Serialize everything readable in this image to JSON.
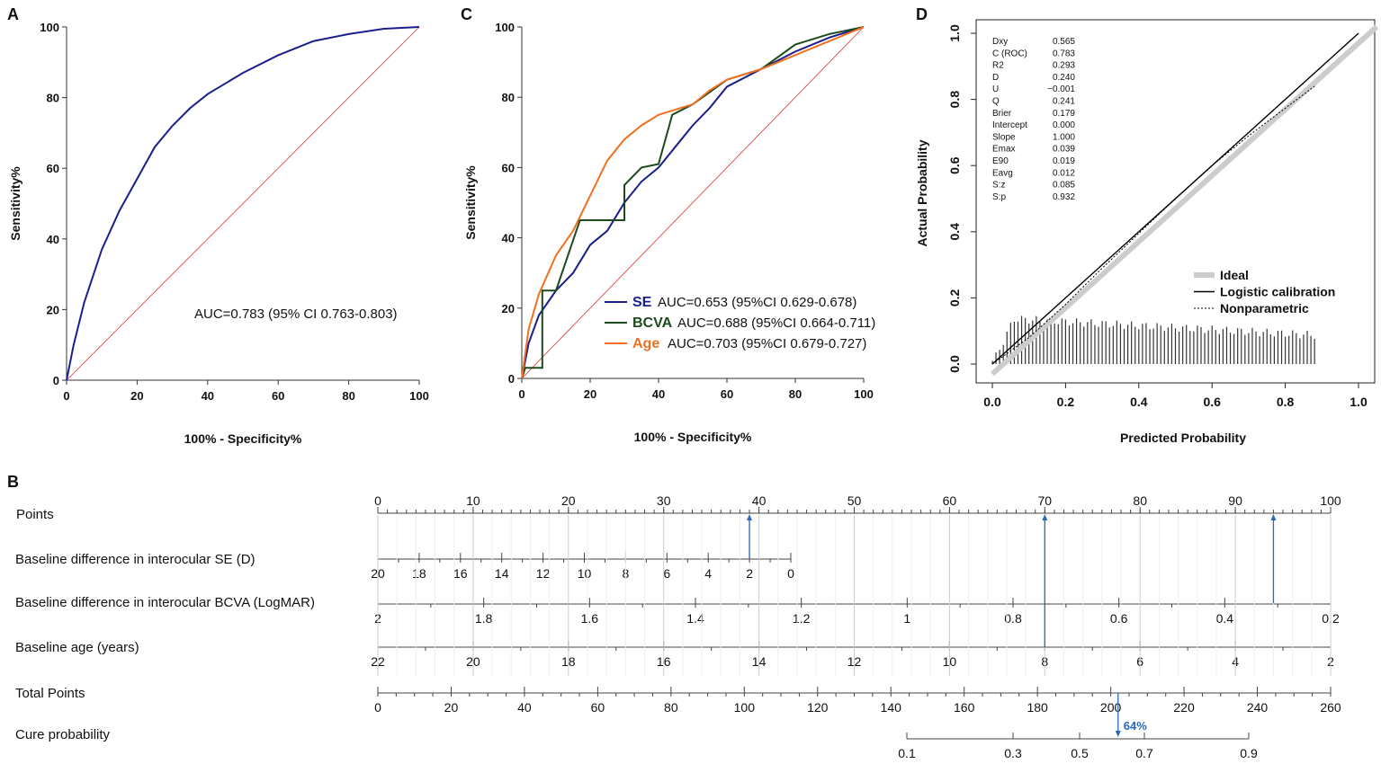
{
  "chart_data": [
    {
      "panel": "A",
      "type": "line",
      "xlabel": "100% - Specificity%",
      "ylabel": "Sensitivity%",
      "xlim": [
        0,
        100
      ],
      "ylim": [
        0,
        100
      ],
      "ticks": [
        0,
        20,
        40,
        60,
        80,
        100
      ],
      "annotation": "AUC=0.783 (95% CI 0.763-0.803)",
      "series": [
        {
          "color": "#1a1f8c",
          "x": [
            0,
            2,
            5,
            10,
            15,
            20,
            25,
            30,
            35,
            40,
            50,
            60,
            70,
            80,
            90,
            100
          ],
          "y": [
            0,
            10,
            22,
            37,
            48,
            57,
            66,
            72,
            77,
            81,
            87,
            92,
            96,
            98,
            99.5,
            100
          ]
        }
      ],
      "reference_color": "#e03030"
    },
    {
      "panel": "C",
      "type": "line",
      "xlabel": "100% - Specificity%",
      "ylabel": "Sensitivity%",
      "xlim": [
        0,
        100
      ],
      "ylim": [
        0,
        100
      ],
      "ticks": [
        0,
        20,
        40,
        60,
        80,
        100
      ],
      "legend": "bottom-right",
      "series": [
        {
          "name": "SE",
          "stat": "AUC=0.653 (95%CI 0.629-0.678)",
          "color": "#1a1f8c",
          "x": [
            0,
            2,
            5,
            10,
            15,
            20,
            25,
            30,
            35,
            40,
            45,
            50,
            55,
            60,
            70,
            80,
            90,
            100
          ],
          "y": [
            0,
            10,
            18,
            25,
            30,
            38,
            42,
            50,
            56,
            60,
            66,
            72,
            77,
            83,
            88,
            93,
            97,
            100
          ]
        },
        {
          "name": "BCVA",
          "stat": "AUC=0.688 (95%CI 0.664-0.711)",
          "color": "#1d4a1d",
          "x": [
            0,
            1,
            6,
            6,
            10,
            17,
            30,
            30,
            35,
            40,
            44,
            50,
            60,
            70,
            80,
            90,
            100
          ],
          "y": [
            0,
            3,
            3,
            25,
            25,
            45,
            45,
            55,
            60,
            61,
            75,
            78,
            85,
            88,
            95,
            98,
            100
          ]
        },
        {
          "name": "Age",
          "stat": "AUC=0.703 (95%CI 0.679-0.727)",
          "color": "#f07020",
          "x": [
            0,
            2,
            5,
            10,
            15,
            20,
            25,
            30,
            35,
            40,
            50,
            55,
            60,
            70,
            80,
            90,
            100
          ],
          "y": [
            0,
            14,
            24,
            35,
            42,
            52,
            62,
            68,
            72,
            75,
            78,
            82,
            85,
            88,
            92,
            96,
            100
          ]
        }
      ]
    },
    {
      "panel": "D",
      "type": "line",
      "xlabel": "Predicted Probability",
      "ylabel": "Actual Probability",
      "xlim": [
        0,
        1
      ],
      "ylim": [
        0,
        1
      ],
      "ticks": [
        "0.0",
        "0.2",
        "0.4",
        "0.6",
        "0.8",
        "1.0"
      ],
      "legend": "bottom-right",
      "legend_entries": [
        "Ideal",
        "Logistic calibration",
        "Nonparametric"
      ],
      "nonparametric": {
        "x": [
          0,
          0.1,
          0.2,
          0.3,
          0.5,
          0.6,
          0.7,
          0.88
        ],
        "y": [
          0,
          0.08,
          0.18,
          0.29,
          0.5,
          0.6,
          0.69,
          0.84
        ]
      },
      "stats": [
        [
          "Dxy",
          "0.565"
        ],
        [
          "C (ROC)",
          "0.783"
        ],
        [
          "R2",
          "0.293"
        ],
        [
          "D",
          "0.240"
        ],
        [
          "U",
          "−0.001"
        ],
        [
          "Q",
          "0.241"
        ],
        [
          "Brier",
          "0.179"
        ],
        [
          "Intercept",
          "0.000"
        ],
        [
          "Slope",
          "1.000"
        ],
        [
          "Emax",
          "0.039"
        ],
        [
          "E90",
          "0.019"
        ],
        [
          "Eavg",
          "0.012"
        ],
        [
          "S:z",
          "0.085"
        ],
        [
          "S:p",
          "0.932"
        ]
      ]
    },
    {
      "panel": "B",
      "type": "nomogram",
      "rows": [
        {
          "label": "Points",
          "ticks": [
            "0",
            "10",
            "20",
            "30",
            "40",
            "50",
            "60",
            "70",
            "80",
            "90",
            "100"
          ]
        },
        {
          "label": "Baseline difference in interocular SE (D)",
          "ticks": [
            "20",
            "18",
            "16",
            "14",
            "12",
            "10",
            "8",
            "6",
            "4",
            "2",
            "0"
          ]
        },
        {
          "label": "Baseline difference in interocular BCVA (LogMAR)",
          "ticks": [
            "2",
            "1.8",
            "1.6",
            "1.4",
            "1.2",
            "1",
            "0.8",
            "0.6",
            "0.4",
            "0.2"
          ]
        },
        {
          "label": "Baseline age (years)",
          "ticks": [
            "22",
            "20",
            "18",
            "16",
            "14",
            "12",
            "10",
            "8",
            "6",
            "4",
            "2"
          ]
        },
        {
          "label": "Total Points",
          "ticks": [
            "0",
            "20",
            "40",
            "60",
            "80",
            "100",
            "120",
            "140",
            "160",
            "180",
            "200",
            "220",
            "240",
            "260"
          ]
        },
        {
          "label": "Cure probability",
          "ticks": [
            "0.1",
            "0.3",
            "0.5",
            "0.7",
            "0.9"
          ]
        }
      ],
      "selected_points": [
        39,
        70,
        94
      ],
      "total_points": 202,
      "result_label": "64%",
      "arrow_color": "#2a6ab8"
    }
  ],
  "panels": {
    "A": "A",
    "B": "B",
    "C": "C",
    "D": "D"
  }
}
